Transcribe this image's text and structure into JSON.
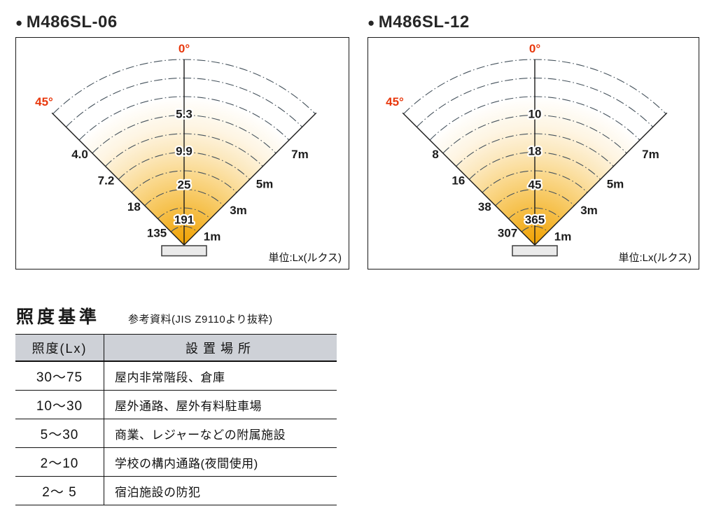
{
  "colors": {
    "accent_red": "#e8380d",
    "fan_gradient": [
      "#f0a202",
      "#f3af22",
      "#f6c250",
      "#fad88c",
      "#fce9c0",
      "#fef5e3",
      "#ffffff"
    ],
    "arc_line": "#45525c",
    "diagram_line": "#1a1a1a",
    "table_header_bg": "#ced1d7",
    "fixture_fill": "#eaeaea",
    "text_dark": "#262626"
  },
  "chart_data": [
    {
      "type": "radial-fan",
      "bullet": "●",
      "title": "M486SL-06",
      "unit_note": "単位:Lx(ルクス)",
      "angle_labels": [
        "0°",
        "45°"
      ],
      "arc_interval_m": 1,
      "max_arc_m": 10,
      "distances_m": [
        7,
        5,
        3,
        1
      ],
      "distance_labels": [
        "7m",
        "5m",
        "3m",
        "1m"
      ],
      "series": [
        {
          "name": "center-axis-0deg",
          "values": [
            5.3,
            9.9,
            25,
            191
          ],
          "labels": [
            "5.3",
            "9.9",
            "25",
            "191"
          ]
        },
        {
          "name": "edge-45deg",
          "values": [
            4.0,
            7.2,
            18,
            135
          ],
          "labels": [
            "4.0",
            "7.2",
            "18",
            "135"
          ]
        }
      ]
    },
    {
      "type": "radial-fan",
      "bullet": "●",
      "title": "M486SL-12",
      "unit_note": "単位:Lx(ルクス)",
      "angle_labels": [
        "0°",
        "45°"
      ],
      "arc_interval_m": 1,
      "max_arc_m": 10,
      "distances_m": [
        7,
        5,
        3,
        1
      ],
      "distance_labels": [
        "7m",
        "5m",
        "3m",
        "1m"
      ],
      "series": [
        {
          "name": "center-axis-0deg",
          "values": [
            10,
            18,
            45,
            365
          ],
          "labels": [
            "10",
            "18",
            "45",
            "365"
          ]
        },
        {
          "name": "edge-45deg",
          "values": [
            8,
            16,
            38,
            307
          ],
          "labels": [
            "8",
            "16",
            "38",
            "307"
          ]
        }
      ]
    }
  ],
  "standards_table": {
    "heading": "照度基準",
    "source_note": "参考資料(JIS Z9110より抜粋)",
    "columns": [
      "照度(Lx)",
      "設置場所"
    ],
    "rows": [
      {
        "lux": "30〜75",
        "place": "屋内非常階段、倉庫"
      },
      {
        "lux": "10〜30",
        "place": "屋外通路、屋外有料駐車場"
      },
      {
        "lux": "5〜30",
        "place": "商業、レジャーなどの附属施設"
      },
      {
        "lux": "2〜10",
        "place": "学校の構内通路(夜間使用)"
      },
      {
        "lux": "2〜 5",
        "place": "宿泊施設の防犯"
      }
    ]
  }
}
